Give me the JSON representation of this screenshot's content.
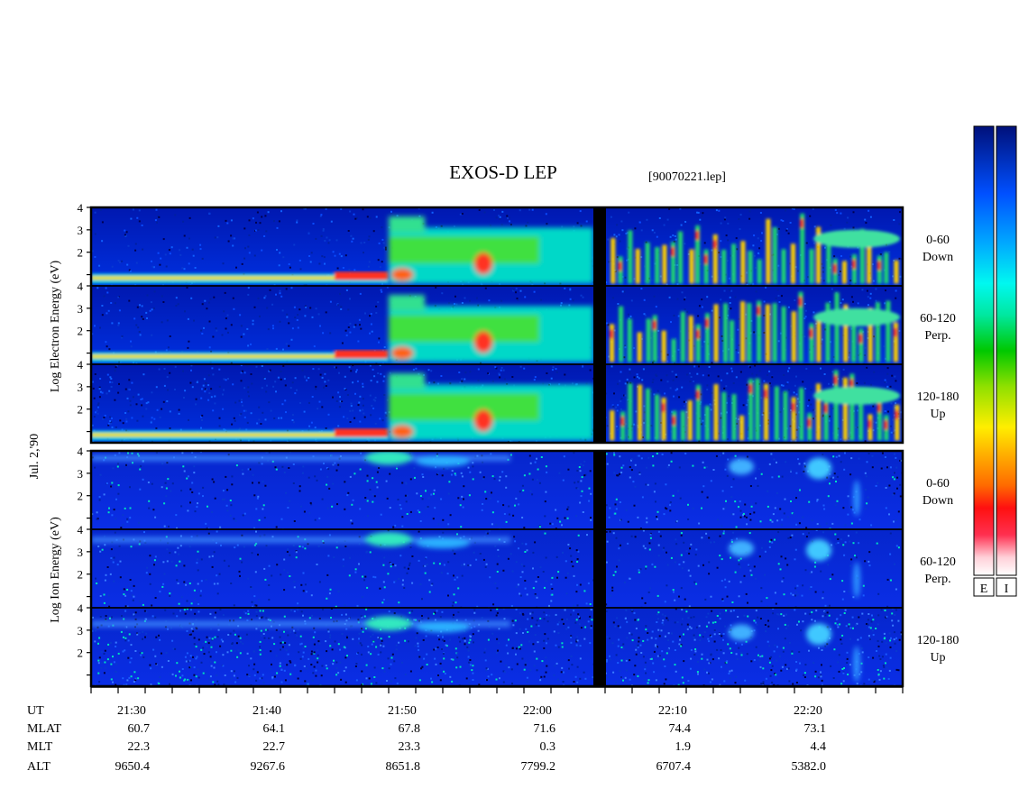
{
  "chart_data": {
    "type": "heatmap",
    "title": "EXOS-D LEP",
    "file_label": "[90070221.lep]",
    "date_label": "Jul. 2,'90",
    "x_ticks": [
      "21:30",
      "21:40",
      "21:50",
      "22:00",
      "22:10",
      "22:20"
    ],
    "data_gap_x": "22:03",
    "groups": [
      {
        "name": "electron",
        "ylabel": "Log Electron Energy (eV)",
        "panels": [
          {
            "label_top": "0-60",
            "label_bottom": "Down",
            "y_ticks": [
              "1",
              "2",
              "3",
              "4"
            ],
            "ylim": [
              0.5,
              4
            ]
          },
          {
            "label_top": "60-120",
            "label_bottom": "Perp.",
            "y_ticks": [
              "1",
              "2",
              "3",
              "4"
            ],
            "ylim": [
              0.5,
              4
            ]
          },
          {
            "label_top": "120-180",
            "label_bottom": "Up",
            "y_ticks": [
              "1",
              "2",
              "3",
              "4"
            ],
            "ylim": [
              0.5,
              4
            ]
          }
        ]
      },
      {
        "name": "ion",
        "ylabel": "Log Ion Energy (eV)",
        "panels": [
          {
            "label_top": "0-60",
            "label_bottom": "Down",
            "y_ticks": [
              "1",
              "2",
              "3",
              "4"
            ],
            "ylim": [
              0.5,
              4
            ]
          },
          {
            "label_top": "60-120",
            "label_bottom": "Perp.",
            "y_ticks": [
              "1",
              "2",
              "3",
              "4"
            ],
            "ylim": [
              0.5,
              4
            ]
          },
          {
            "label_top": "120-180",
            "label_bottom": "Up",
            "y_ticks": [
              "1",
              "2",
              "3",
              "4"
            ],
            "ylim": [
              0.5,
              4
            ]
          }
        ]
      }
    ],
    "colorbars": [
      {
        "label": "E"
      },
      {
        "label": "I"
      }
    ],
    "colorbar_colors": [
      "#ffffff",
      "#ff4060",
      "#ff0000",
      "#ff8c00",
      "#ffe600",
      "#00cc00",
      "#00ffcc",
      "#00b0ff",
      "#0040ff",
      "#000090"
    ],
    "ephemeris": {
      "labels": [
        "UT",
        "MLAT",
        "MLT",
        "ALT"
      ],
      "columns": [
        {
          "UT": "21:30",
          "MLAT": "60.7",
          "MLT": "22.3",
          "ALT": "9650.4"
        },
        {
          "UT": "21:40",
          "MLAT": "64.1",
          "MLT": "22.7",
          "ALT": "9267.6"
        },
        {
          "UT": "21:50",
          "MLAT": "67.8",
          "MLT": "23.3",
          "ALT": "8651.8"
        },
        {
          "UT": "22:00",
          "MLAT": "71.6",
          "MLT": "0.3",
          "ALT": "7799.2"
        },
        {
          "UT": "22:10",
          "MLAT": "74.4",
          "MLT": "1.9",
          "ALT": "6707.4"
        },
        {
          "UT": "22:20",
          "MLAT": "73.1",
          "MLT": "4.4",
          "ALT": "5382.0"
        }
      ]
    }
  }
}
